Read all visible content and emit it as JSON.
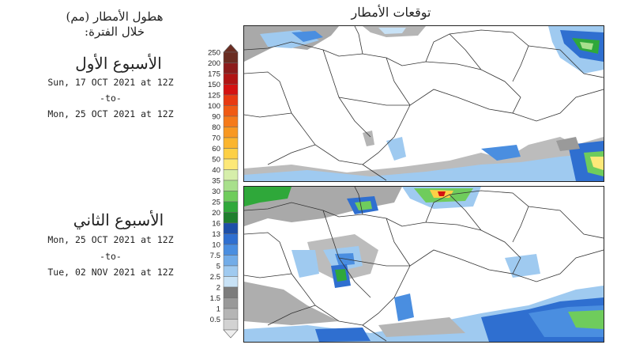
{
  "header": {
    "left_title_line1": "هطول الأمطار (مم)",
    "left_title_line2": "خلال الفترة:",
    "map_title": "توقعات الأمطار"
  },
  "weeks": [
    {
      "heading": "الأسبوع الأول",
      "from": "Sun, 17 OCT 2021 at 12Z",
      "sep": "-to-",
      "to": "Mon, 25 OCT 2021 at 12Z"
    },
    {
      "heading": "الأسبوع الثاني",
      "from": "Mon, 25 OCT 2021 at 12Z",
      "sep": "-to-",
      "to": "Tue, 02 NOV 2021 at 12Z"
    }
  ],
  "legend": {
    "unit": "mm",
    "levels": [
      {
        "label": "250",
        "color": "#6b2d22"
      },
      {
        "label": "200",
        "color": "#8c1c1c"
      },
      {
        "label": "175",
        "color": "#b01515"
      },
      {
        "label": "150",
        "color": "#d41212"
      },
      {
        "label": "125",
        "color": "#e83a12"
      },
      {
        "label": "100",
        "color": "#f05a14"
      },
      {
        "label": "90",
        "color": "#f57a1a"
      },
      {
        "label": "80",
        "color": "#f89822"
      },
      {
        "label": "70",
        "color": "#fbb52e"
      },
      {
        "label": "60",
        "color": "#fdd046"
      },
      {
        "label": "50",
        "color": "#fde878"
      },
      {
        "label": "40",
        "color": "#d6eeaa"
      },
      {
        "label": "35",
        "color": "#a8e08c"
      },
      {
        "label": "30",
        "color": "#6fcc5c"
      },
      {
        "label": "25",
        "color": "#2fa83a"
      },
      {
        "label": "20",
        "color": "#1f7f2e"
      },
      {
        "label": "16",
        "color": "#1d4fa8"
      },
      {
        "label": "13",
        "color": "#2f6fd0"
      },
      {
        "label": "10",
        "color": "#4a8ee0"
      },
      {
        "label": "7.5",
        "color": "#72ace8"
      },
      {
        "label": "5",
        "color": "#9fcaf0"
      },
      {
        "label": "2.5",
        "color": "#c8e2f6"
      },
      {
        "label": "2",
        "color": "#7c7c7c"
      },
      {
        "label": "1.5",
        "color": "#999999"
      },
      {
        "label": "1",
        "color": "#b5b5b5"
      },
      {
        "label": "0.5",
        "color": "#d2d2d2"
      }
    ]
  },
  "panels": [
    {
      "id": "week1-map"
    },
    {
      "id": "week2-map"
    }
  ]
}
